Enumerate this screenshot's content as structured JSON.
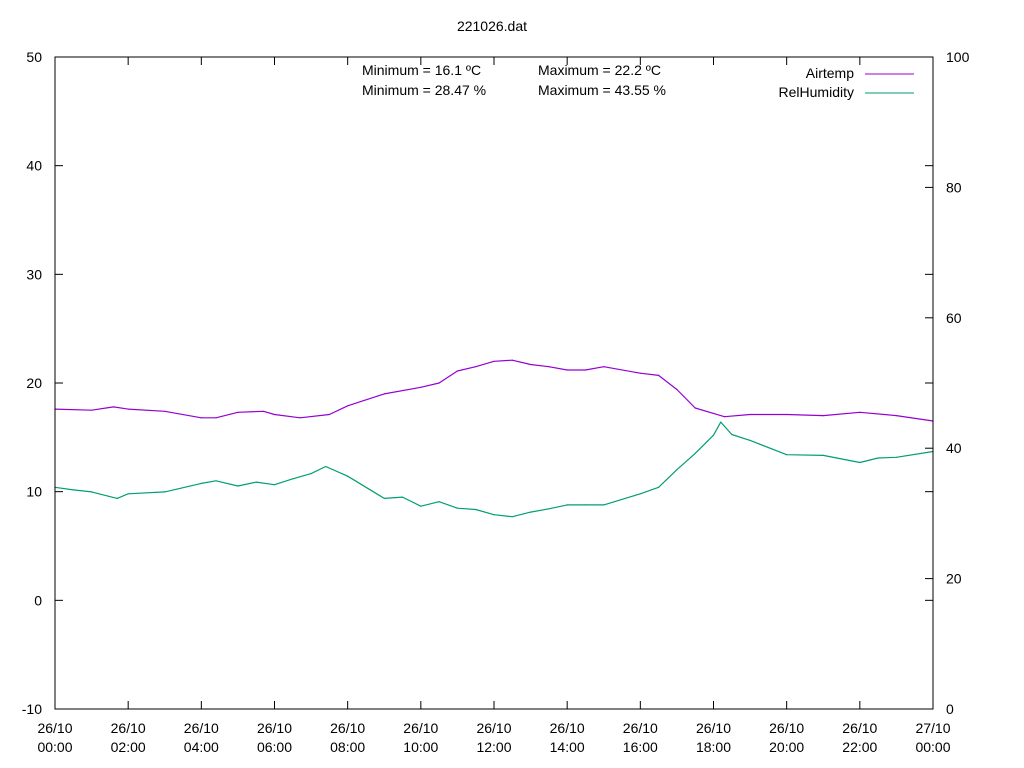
{
  "chart_data": {
    "type": "line",
    "title": "221026.dat",
    "x_ticks": [
      {
        "value": 0,
        "line1": "26/10",
        "line2": "00:00"
      },
      {
        "value": 2,
        "line1": "26/10",
        "line2": "02:00"
      },
      {
        "value": 4,
        "line1": "26/10",
        "line2": "04:00"
      },
      {
        "value": 6,
        "line1": "26/10",
        "line2": "06:00"
      },
      {
        "value": 8,
        "line1": "26/10",
        "line2": "08:00"
      },
      {
        "value": 10,
        "line1": "26/10",
        "line2": "10:00"
      },
      {
        "value": 12,
        "line1": "26/10",
        "line2": "12:00"
      },
      {
        "value": 14,
        "line1": "26/10",
        "line2": "14:00"
      },
      {
        "value": 16,
        "line1": "26/10",
        "line2": "16:00"
      },
      {
        "value": 18,
        "line1": "26/10",
        "line2": "18:00"
      },
      {
        "value": 20,
        "line1": "26/10",
        "line2": "20:00"
      },
      {
        "value": 22,
        "line1": "26/10",
        "line2": "22:00"
      },
      {
        "value": 24,
        "line1": "27/10",
        "line2": "00:00"
      }
    ],
    "xlim": [
      0,
      24
    ],
    "y_left": {
      "lim": [
        -10,
        50
      ],
      "ticks": [
        -10,
        0,
        10,
        20,
        30,
        40,
        50
      ]
    },
    "y_right": {
      "lim": [
        0,
        100
      ],
      "ticks": [
        0,
        20,
        40,
        60,
        80,
        100
      ]
    },
    "grid": false,
    "legend_position": "top-right",
    "annotations": [
      "Minimum = 16.1 ºC",
      "Maximum = 22.2 ºC",
      "Minimum = 28.47 %",
      "Maximum = 43.55 %"
    ],
    "series": [
      {
        "name": "Airtemp",
        "axis": "left",
        "color": "#9400d3",
        "x": [
          0,
          1,
          1.6,
          2,
          3,
          4,
          4.4,
          5,
          5.7,
          6,
          6.7,
          7.5,
          8,
          9,
          10,
          10.5,
          11,
          11.5,
          12,
          12.5,
          13,
          13.5,
          14,
          14.5,
          15,
          16,
          16.5,
          17,
          17.5,
          18,
          18.3,
          19,
          20,
          21,
          22,
          23,
          24
        ],
        "y": [
          17.6,
          17.5,
          17.8,
          17.6,
          17.4,
          16.8,
          16.8,
          17.3,
          17.4,
          17.1,
          16.8,
          17.1,
          17.9,
          19.0,
          19.6,
          20.0,
          21.1,
          21.5,
          22.0,
          22.1,
          21.7,
          21.5,
          21.2,
          21.2,
          21.5,
          20.9,
          20.7,
          19.4,
          17.7,
          17.2,
          16.9,
          17.1,
          17.1,
          17.0,
          17.3,
          17.0,
          16.5
        ]
      },
      {
        "name": "RelHumidity",
        "axis": "right",
        "color": "#009e73",
        "x": [
          0,
          0.5,
          1,
          1.7,
          2,
          3,
          4,
          4.4,
          5,
          5.5,
          6,
          6.5,
          7,
          7.4,
          8,
          9,
          9.5,
          10,
          10.5,
          11,
          11.5,
          12,
          12.5,
          13,
          13.5,
          14,
          14.5,
          15,
          16,
          16.5,
          17,
          17.5,
          18,
          18.2,
          18.5,
          19,
          20,
          21,
          22,
          22.5,
          23,
          24
        ],
        "y": [
          34.0,
          33.6,
          33.3,
          32.3,
          33.0,
          33.3,
          34.6,
          35.0,
          34.2,
          34.8,
          34.4,
          35.3,
          36.1,
          37.2,
          35.7,
          32.3,
          32.5,
          31.1,
          31.8,
          30.8,
          30.6,
          29.8,
          29.5,
          30.2,
          30.7,
          31.3,
          31.3,
          31.3,
          33.0,
          34.0,
          36.7,
          39.2,
          42.0,
          44.0,
          42.1,
          41.2,
          39.0,
          38.9,
          37.8,
          38.5,
          38.6,
          39.5
        ]
      }
    ]
  }
}
